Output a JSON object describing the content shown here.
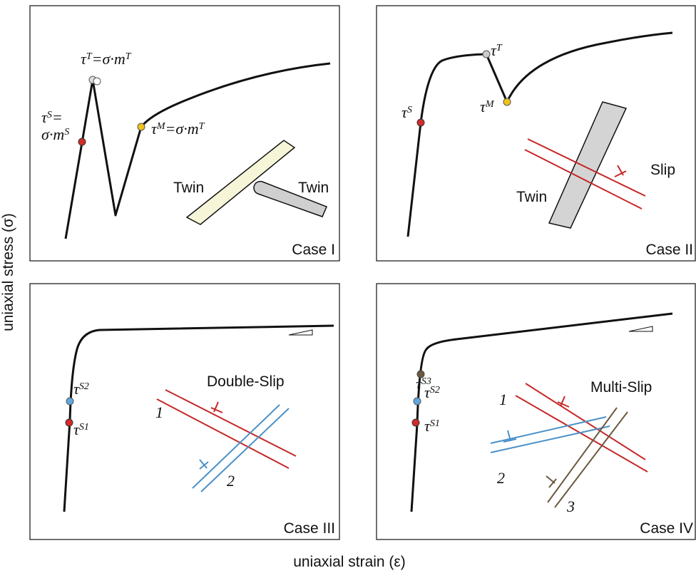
{
  "axis_labels": {
    "y": "uniaxial stress (σ)",
    "x": "uniaxial strain (ε)"
  },
  "panels": [
    {
      "case": "Case I",
      "labels": [
        [
          "τ",
          "T",
          "=σ·m",
          "T"
        ],
        [
          "τ",
          "S",
          "="
        ],
        [
          "σ·m",
          "S"
        ],
        [
          "τ",
          "M",
          "=σ·m",
          "T"
        ],
        [
          "Twin"
        ],
        [
          "Twin"
        ]
      ]
    },
    {
      "case": "Case II",
      "labels": [
        [
          "τ",
          "T"
        ],
        [
          "τ",
          "M"
        ],
        [
          "τ",
          "S"
        ],
        [
          "Slip"
        ],
        [
          "Twin"
        ]
      ]
    },
    {
      "case": "Case III",
      "labels": [
        [
          "τ",
          "S2"
        ],
        [
          "τ",
          "S1"
        ],
        [
          "Double-Slip"
        ],
        [
          "1"
        ],
        [
          "2"
        ]
      ]
    },
    {
      "case": "Case IV",
      "labels": [
        [
          "τ",
          "S3"
        ],
        [
          "τ",
          "S2"
        ],
        [
          "τ",
          "S1"
        ],
        [
          "Multi-Slip"
        ],
        [
          "1"
        ],
        [
          "2"
        ],
        [
          "3"
        ]
      ]
    }
  ]
}
